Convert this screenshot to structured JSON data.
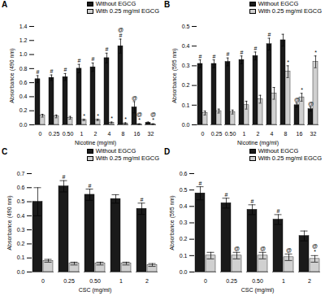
{
  "chart_data": [
    {
      "type": "bar",
      "title": "A",
      "xlabel": "Nicotine (mg/ml)",
      "ylabel": "Absorbance (490 nm)",
      "categories": [
        "0",
        "0.25",
        "0.50",
        "1",
        "2",
        "4",
        "8",
        "16",
        "32"
      ],
      "series": [
        {
          "name": "Without EGCG",
          "color": "#1a1a1a",
          "values": [
            0.65,
            0.67,
            0.68,
            0.8,
            0.82,
            0.95,
            1.12,
            0.25,
            0.03
          ],
          "errors": [
            0.05,
            0.04,
            0.05,
            0.06,
            0.06,
            0.07,
            0.1,
            0.08,
            0.01
          ]
        },
        {
          "name": "With 0.25 mg/ml EGCG",
          "color": "#d0d0d0",
          "values": [
            0.13,
            0.12,
            0.1,
            0.07,
            0.07,
            0.03,
            0.02,
            0.01,
            0.01
          ],
          "errors": [
            0.02,
            0.02,
            0.02,
            0.01,
            0.01,
            0.01,
            0.01,
            0.005,
            0.005
          ]
        }
      ],
      "ylim": [
        0,
        1.4
      ],
      "yticks": [
        {
          "value": 0,
          "label": "0.0"
        },
        0.2,
        0.4,
        0.6,
        0.8,
        {
          "value": 1,
          "label": "1.0"
        },
        1.2,
        1.4
      ],
      "legend": "upper right",
      "annotations": [
        {
          "text": "#",
          "series": "Without EGCG",
          "categories": [
            "0",
            "0.25",
            "0.50",
            "1",
            "2",
            "4",
            "8"
          ]
        },
        {
          "text": "@",
          "series": "Without EGCG",
          "categories": [
            "8",
            "16"
          ]
        },
        {
          "text": "*",
          "series": "With 0.25 mg/ml EGCG",
          "categories": [
            "1",
            "2",
            "4",
            "8",
            "16",
            "32"
          ]
        },
        {
          "text": "@",
          "series": "With 0.25 mg/ml EGCG",
          "categories": [
            "16",
            "32"
          ]
        }
      ]
    },
    {
      "type": "bar",
      "title": "B",
      "xlabel": "Nicotine (mg/ml)",
      "ylabel": "Absorbance (595 nm)",
      "categories": [
        "0",
        "0.25",
        "0.50",
        "1",
        "2",
        "4",
        "8",
        "16",
        "32"
      ],
      "series": [
        {
          "name": "Without EGCG",
          "color": "#1a1a1a",
          "values": [
            0.31,
            0.31,
            0.32,
            0.33,
            0.35,
            0.41,
            0.43,
            0.1,
            0.08
          ],
          "errors": [
            0.02,
            0.02,
            0.02,
            0.02,
            0.02,
            0.03,
            0.03,
            0.01,
            0.01
          ]
        },
        {
          "name": "With 0.25 mg/ml EGCG",
          "color": "#d0d0d0",
          "values": [
            0.06,
            0.07,
            0.065,
            0.1,
            0.13,
            0.16,
            0.27,
            0.14,
            0.32
          ],
          "errors": [
            0.01,
            0.01,
            0.01,
            0.02,
            0.02,
            0.03,
            0.03,
            0.02,
            0.03
          ]
        }
      ],
      "ylim": [
        0,
        0.5
      ],
      "yticks": [
        {
          "value": 0,
          "label": "0.0"
        },
        0.1,
        0.2,
        0.3,
        0.4,
        0.5
      ],
      "legend": "upper right",
      "annotations": [
        {
          "text": "#",
          "series": "Without EGCG",
          "categories": [
            "0",
            "0.25",
            "0.50",
            "1",
            "2",
            "4"
          ]
        },
        {
          "text": "@",
          "series": "Without EGCG",
          "categories": [
            "16",
            "32"
          ]
        },
        {
          "text": "*",
          "series": "With 0.25 mg/ml EGCG",
          "categories": [
            "8",
            "16",
            "32"
          ]
        }
      ]
    },
    {
      "type": "bar",
      "title": "C",
      "xlabel": "CSC (mg/ml)",
      "ylabel": "Absorbance (490 nm)",
      "categories": [
        "0",
        "0.25",
        "0.50",
        "1",
        "2"
      ],
      "series": [
        {
          "name": "Without EGCG",
          "color": "#1a1a1a",
          "values": [
            0.5,
            0.61,
            0.55,
            0.52,
            0.45
          ],
          "errors": [
            0.1,
            0.04,
            0.04,
            0.03,
            0.04
          ]
        },
        {
          "name": "With 0.25 mg/ml EGCG",
          "color": "#d0d0d0",
          "values": [
            0.08,
            0.06,
            0.06,
            0.06,
            0.05
          ],
          "errors": [
            0.01,
            0.01,
            0.01,
            0.01,
            0.01
          ]
        }
      ],
      "ylim": [
        0,
        0.7
      ],
      "yticks": [
        {
          "value": 0,
          "label": "0.0"
        },
        0.1,
        0.2,
        0.3,
        0.4,
        0.5,
        0.6,
        0.7
      ],
      "legend": "upper right",
      "annotations": [
        {
          "text": "#",
          "series": "Without EGCG",
          "categories": [
            "0.25",
            "0.50",
            "2"
          ]
        }
      ]
    },
    {
      "type": "bar",
      "title": "D",
      "xlabel": "CSC (mg/ml)",
      "ylabel": "Absorbance (595 nm)",
      "categories": [
        "0",
        "0.25",
        "0.50",
        "1",
        "2"
      ],
      "series": [
        {
          "name": "Without EGCG",
          "color": "#1a1a1a",
          "values": [
            0.48,
            0.42,
            0.38,
            0.32,
            0.22
          ],
          "errors": [
            0.04,
            0.03,
            0.03,
            0.03,
            0.03
          ]
        },
        {
          "name": "With 0.25 mg/ml EGCG",
          "color": "#d0d0d0",
          "values": [
            0.1,
            0.1,
            0.1,
            0.09,
            0.08
          ],
          "errors": [
            0.02,
            0.02,
            0.02,
            0.02,
            0.02
          ]
        }
      ],
      "ylim": [
        0,
        0.6
      ],
      "yticks": [
        {
          "value": 0,
          "label": "0.0"
        },
        0.1,
        0.2,
        0.3,
        0.4,
        0.5,
        0.6
      ],
      "legend": "upper right",
      "annotations": [
        {
          "text": "#",
          "series": "Without EGCG",
          "categories": [
            "0",
            "0.25",
            "0.50",
            "1"
          ]
        },
        {
          "text": "*",
          "series": "With 0.25 mg/ml EGCG",
          "categories": [
            "2"
          ]
        },
        {
          "text": "@",
          "series": "With 0.25 mg/ml EGCG",
          "categories": [
            "0.25",
            "0.50",
            "1",
            "2"
          ]
        }
      ]
    }
  ]
}
